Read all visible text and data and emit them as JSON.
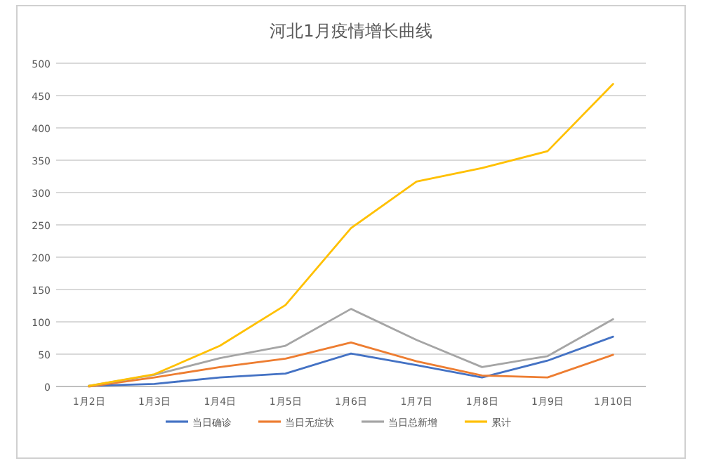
{
  "chart_data": {
    "type": "line",
    "title": "河北1月疫情增长曲线",
    "categories": [
      "1月2日",
      "1月3日",
      "1月4日",
      "1月5日",
      "1月6日",
      "1月7日",
      "1月8日",
      "1月9日",
      "1月10日"
    ],
    "series": [
      {
        "name": "当日确诊",
        "color": "#4472c4",
        "values": [
          1,
          4,
          14,
          20,
          51,
          33,
          14,
          40,
          77
        ]
      },
      {
        "name": "当日无症状",
        "color": "#ed7d31",
        "values": [
          0,
          14,
          30,
          43,
          68,
          39,
          17,
          14,
          49
        ]
      },
      {
        "name": "当日总新增",
        "color": "#a5a5a5",
        "values": [
          1,
          18,
          44,
          63,
          120,
          72,
          30,
          47,
          104
        ]
      },
      {
        "name": "累计",
        "color": "#ffc000",
        "values": [
          1,
          19,
          63,
          126,
          245,
          317,
          338,
          364,
          468
        ]
      }
    ],
    "ylim": [
      0,
      500
    ],
    "yticks": [
      0,
      50,
      100,
      150,
      200,
      250,
      300,
      350,
      400,
      450,
      500
    ],
    "grid": "y",
    "legend": "bottom",
    "marker": "none",
    "line_style": "solid"
  }
}
